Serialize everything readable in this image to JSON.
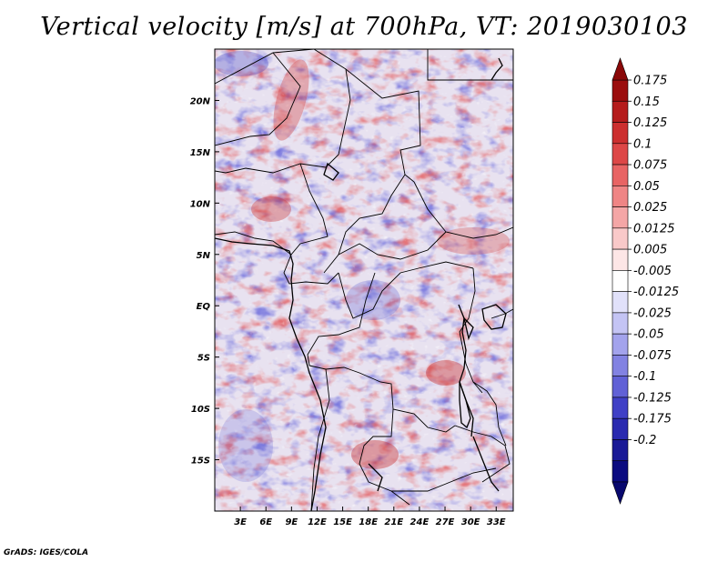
{
  "title": "Vertical velocity [m/s] at 700hPa, VT: 2019030103",
  "credit": "GrADS: IGES/COLA",
  "map": {
    "lon_labels": [
      "3E",
      "6E",
      "9E",
      "12E",
      "15E",
      "18E",
      "21E",
      "24E",
      "27E",
      "30E",
      "33E"
    ],
    "lon_values": [
      3,
      6,
      9,
      12,
      15,
      18,
      21,
      24,
      27,
      30,
      33
    ],
    "lat_labels": [
      "20N",
      "15N",
      "10N",
      "5N",
      "EQ",
      "5S",
      "10S",
      "15S"
    ],
    "lat_values": [
      20,
      15,
      10,
      5,
      0,
      -5,
      -10,
      -15
    ],
    "lon_range": [
      0,
      35
    ],
    "lat_range": [
      -20,
      25
    ]
  },
  "colorbar": {
    "labels": [
      "0.175",
      "0.15",
      "0.125",
      "0.1",
      "0.075",
      "0.05",
      "0.025",
      "0.0125",
      "0.005",
      "-0.005",
      "-0.0125",
      "-0.025",
      "-0.05",
      "-0.075",
      "-0.1",
      "-0.125",
      "-0.175",
      "-0.2"
    ],
    "colors": [
      "#9b0d0d",
      "#b51c1c",
      "#cc2f2f",
      "#dd4747",
      "#e86464",
      "#ef8585",
      "#f4a6a6",
      "#f9c9c9",
      "#fde6e6",
      "#ffffff",
      "#e1e1fa",
      "#c4c4f4",
      "#a3a3ec",
      "#8282e2",
      "#6161d6",
      "#4040c6",
      "#2a2ab0",
      "#1a1a96",
      "#0b0b80"
    ],
    "top_color": "#8a0808",
    "bottom_color": "#08086e"
  }
}
